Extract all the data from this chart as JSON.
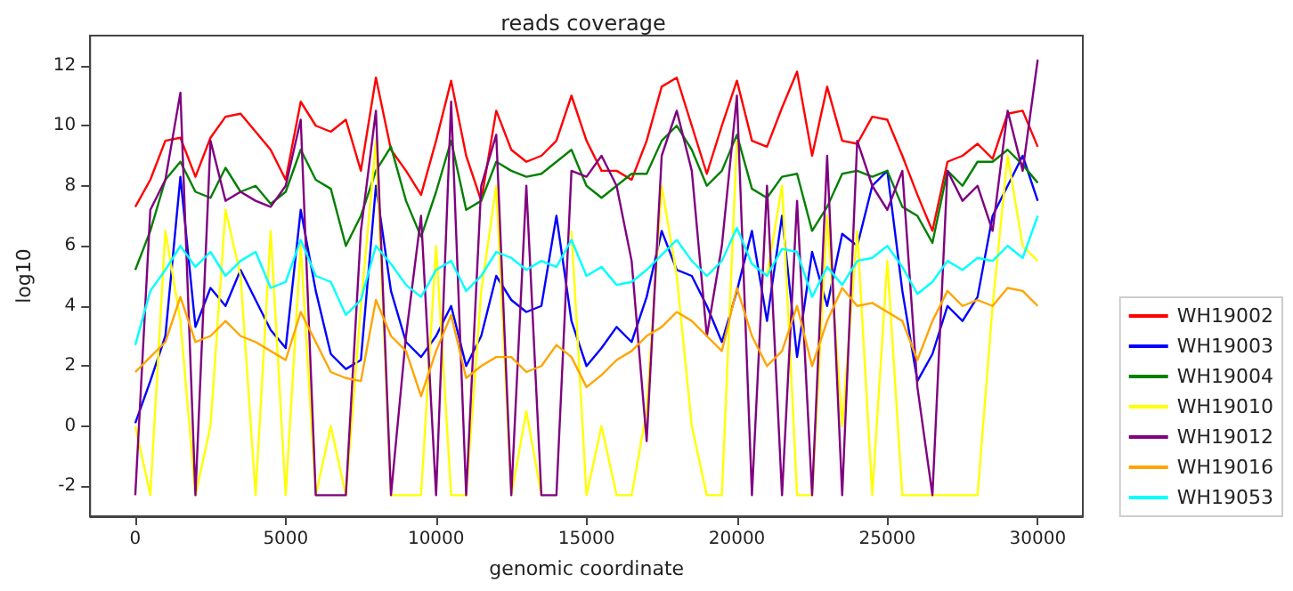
{
  "chart_data": {
    "type": "line",
    "title": "reads coverage",
    "xlabel": "genomic coordinate",
    "ylabel": "log10",
    "x": [
      0,
      500,
      1000,
      1500,
      2000,
      2500,
      3000,
      3500,
      4000,
      4500,
      5000,
      5500,
      6000,
      6500,
      7000,
      7500,
      8000,
      8500,
      9000,
      9500,
      10000,
      10500,
      11000,
      11500,
      12000,
      12500,
      13000,
      13500,
      14000,
      14500,
      15000,
      15500,
      16000,
      16500,
      17000,
      17500,
      18000,
      18500,
      19000,
      19500,
      20000,
      20500,
      21000,
      21500,
      22000,
      22500,
      23000,
      23500,
      24000,
      24500,
      25000,
      25500,
      26000,
      26500,
      27000,
      27500,
      28000,
      28500,
      29000,
      29500,
      30000
    ],
    "series": [
      {
        "name": "WH19002",
        "color": "#ff0000",
        "values": [
          7.3,
          8.2,
          9.5,
          9.6,
          8.3,
          9.6,
          10.3,
          10.4,
          9.8,
          9.2,
          8.2,
          10.8,
          10.0,
          9.8,
          10.2,
          8.5,
          11.6,
          9.2,
          8.5,
          7.7,
          9.5,
          11.5,
          9.0,
          7.5,
          10.5,
          9.2,
          8.8,
          9.0,
          9.5,
          11.0,
          9.5,
          8.5,
          8.5,
          8.2,
          9.5,
          11.3,
          11.6,
          10.0,
          8.4,
          10.0,
          11.5,
          9.5,
          9.3,
          10.6,
          11.8,
          9.0,
          11.3,
          9.5,
          9.4,
          10.3,
          10.2,
          9.0,
          7.7,
          6.5,
          8.8,
          9.0,
          9.4,
          8.9,
          10.4,
          10.5,
          9.3
        ]
      },
      {
        "name": "WH19003",
        "color": "#0000ff",
        "values": [
          0.1,
          1.5,
          3.0,
          8.3,
          3.3,
          4.6,
          4.0,
          5.2,
          4.2,
          3.2,
          2.6,
          7.2,
          4.5,
          2.4,
          1.9,
          2.2,
          8.0,
          4.5,
          2.8,
          2.3,
          3.0,
          4.0,
          2.0,
          3.0,
          5.0,
          4.2,
          3.8,
          4.0,
          7.0,
          3.5,
          2.0,
          2.6,
          3.3,
          2.8,
          4.3,
          6.5,
          5.2,
          5.0,
          4.0,
          2.8,
          4.5,
          6.5,
          3.5,
          7.0,
          2.3,
          5.8,
          4.0,
          6.4,
          6.0,
          8.0,
          8.5,
          4.5,
          1.5,
          2.4,
          4.0,
          3.5,
          4.3,
          7.0,
          8.0,
          9.0,
          7.5
        ]
      },
      {
        "name": "WH19004",
        "color": "#008000",
        "values": [
          5.2,
          6.5,
          8.2,
          8.8,
          7.8,
          7.6,
          8.6,
          7.8,
          8.0,
          7.4,
          7.8,
          9.2,
          8.2,
          7.9,
          6.0,
          7.0,
          8.5,
          9.3,
          7.5,
          6.3,
          7.8,
          9.5,
          7.2,
          7.5,
          8.8,
          8.5,
          8.3,
          8.4,
          8.8,
          9.2,
          8.0,
          7.6,
          8.0,
          8.4,
          8.4,
          9.5,
          10.0,
          9.2,
          8.0,
          8.5,
          9.7,
          7.9,
          7.6,
          8.3,
          8.4,
          6.5,
          7.3,
          8.4,
          8.5,
          8.3,
          8.5,
          7.3,
          7.0,
          6.1,
          8.5,
          8.0,
          8.8,
          8.8,
          9.2,
          8.7,
          8.1
        ]
      },
      {
        "name": "WH19010",
        "color": "#ffff00",
        "values": [
          0.0,
          -2.3,
          6.5,
          3.5,
          -2.3,
          0.0,
          7.2,
          5.0,
          -2.3,
          6.5,
          -2.3,
          6.0,
          -2.3,
          0.0,
          -2.3,
          4.0,
          9.5,
          -2.3,
          -2.3,
          -2.3,
          6.0,
          -2.3,
          -2.3,
          4.5,
          8.0,
          -2.3,
          0.5,
          -2.3,
          null,
          6.5,
          -2.3,
          0.0,
          -2.3,
          -2.3,
          0.5,
          8.0,
          5.0,
          0.0,
          -2.3,
          -2.3,
          9.5,
          null,
          5.0,
          8.0,
          -2.3,
          -2.3,
          7.0,
          0.0,
          6.5,
          -2.3,
          5.5,
          -2.3,
          -2.3,
          -2.3,
          -2.3,
          -2.3,
          -2.3,
          4.0,
          9.0,
          6.0,
          5.5
        ]
      },
      {
        "name": "WH19012",
        "color": "#800080",
        "values": [
          -2.3,
          7.2,
          8.2,
          11.1,
          -2.3,
          9.5,
          7.5,
          7.8,
          7.5,
          7.3,
          8.0,
          10.2,
          -2.3,
          -2.3,
          -2.3,
          6.5,
          10.5,
          -2.3,
          3.0,
          7.0,
          -2.3,
          10.8,
          -2.3,
          8.0,
          9.7,
          -2.3,
          8.0,
          -2.3,
          -2.3,
          8.5,
          8.3,
          9.0,
          8.0,
          5.5,
          -0.5,
          9.0,
          10.5,
          8.5,
          3.0,
          6.0,
          11.0,
          -2.3,
          8.0,
          -2.3,
          7.5,
          -2.3,
          9.0,
          -2.3,
          9.5,
          8.0,
          7.2,
          8.5,
          1.3,
          -2.3,
          8.5,
          7.5,
          8.0,
          6.5,
          10.5,
          8.5,
          12.2
        ]
      },
      {
        "name": "WH19016",
        "color": "#ffa500",
        "values": [
          1.8,
          2.3,
          2.8,
          4.3,
          2.8,
          3.0,
          3.5,
          3.0,
          2.8,
          2.5,
          2.2,
          3.8,
          2.8,
          1.8,
          1.6,
          1.5,
          4.2,
          3.0,
          2.5,
          1.0,
          2.5,
          3.7,
          1.6,
          2.0,
          2.3,
          2.3,
          1.8,
          2.0,
          2.7,
          2.3,
          1.3,
          1.7,
          2.2,
          2.5,
          3.0,
          3.3,
          3.8,
          3.5,
          3.0,
          2.5,
          4.6,
          3.0,
          2.0,
          2.5,
          4.0,
          2.0,
          3.5,
          4.6,
          4.0,
          4.1,
          3.8,
          3.5,
          2.2,
          3.5,
          4.5,
          4.0,
          4.2,
          4.0,
          4.6,
          4.5,
          4.0
        ]
      },
      {
        "name": "WH19053",
        "color": "#00ffff",
        "values": [
          2.7,
          4.5,
          5.2,
          6.0,
          5.3,
          5.8,
          5.0,
          5.5,
          5.8,
          4.6,
          4.8,
          6.2,
          5.0,
          4.8,
          3.7,
          4.2,
          6.0,
          5.4,
          4.7,
          4.3,
          5.2,
          5.5,
          4.5,
          5.0,
          5.8,
          5.6,
          5.2,
          5.5,
          5.3,
          6.2,
          5.0,
          5.3,
          4.7,
          4.8,
          5.2,
          5.7,
          6.2,
          5.5,
          5.0,
          5.5,
          6.6,
          5.4,
          5.0,
          5.9,
          5.8,
          4.3,
          5.3,
          4.7,
          5.5,
          5.6,
          6.0,
          5.3,
          4.4,
          4.8,
          5.5,
          5.2,
          5.6,
          5.5,
          6.0,
          5.6,
          7.0
        ]
      }
    ],
    "xlim": [
      -1500,
      31500
    ],
    "ylim": [
      -3,
      13
    ],
    "xticks": [
      0,
      5000,
      10000,
      15000,
      20000,
      25000,
      30000
    ],
    "yticks": [
      -2,
      0,
      2,
      4,
      6,
      8,
      10,
      12
    ],
    "grid": false,
    "legend": "bottom right",
    "marker": "none"
  }
}
